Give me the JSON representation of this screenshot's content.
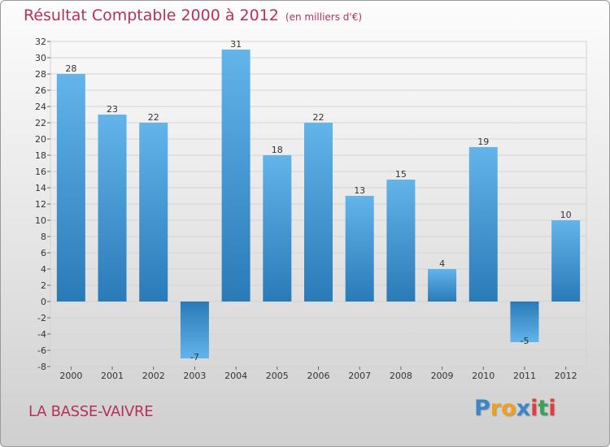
{
  "chart_data": {
    "type": "bar",
    "title": "Résultat Comptable 2000 à 2012",
    "subtitle": "(en milliers d'€)",
    "categories": [
      "2000",
      "2001",
      "2002",
      "2003",
      "2004",
      "2005",
      "2006",
      "2007",
      "2008",
      "2009",
      "2010",
      "2011",
      "2012"
    ],
    "values": [
      28,
      23,
      22,
      -7,
      31,
      18,
      22,
      13,
      15,
      4,
      19,
      -5,
      10
    ],
    "ylim": [
      -8,
      32
    ],
    "ytick_step": 2,
    "xlabel": "",
    "ylabel": "",
    "grid": true
  },
  "location": "LA BASSE-VAIVRE",
  "logo": {
    "letters": [
      "P",
      "r",
      "o",
      "x",
      "i",
      "t",
      "i"
    ],
    "colors": [
      "#3a86c8",
      "#f0a020",
      "#f0a020",
      "#3a86c8",
      "#e23c3c",
      "#3aa05a",
      "#e23c3c"
    ]
  },
  "colors": {
    "bar_light": "#62b4ea",
    "bar_dark": "#2a7ab8",
    "title": "#b5315a"
  }
}
